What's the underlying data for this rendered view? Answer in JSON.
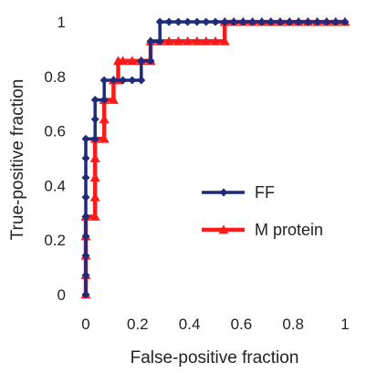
{
  "chart_data": {
    "type": "line",
    "title": "",
    "xlabel": "False-positive fraction",
    "ylabel": "True-positive fraction",
    "xlim": [
      0,
      1
    ],
    "ylim": [
      0,
      1
    ],
    "x_ticks": [
      "0",
      "0.2",
      "0.4",
      "0.6",
      "0.8",
      "1"
    ],
    "y_ticks": [
      "0",
      "0.2",
      "0.4",
      "0.6",
      "0.8",
      "1"
    ],
    "grid": false,
    "legend_position": "center-right",
    "series": [
      {
        "name": "FF",
        "color": "#1f2a7a",
        "marker": "diamond",
        "step": true,
        "points": [
          [
            0,
            0
          ],
          [
            0,
            0.071
          ],
          [
            0,
            0.143
          ],
          [
            0,
            0.214
          ],
          [
            0,
            0.286
          ],
          [
            0,
            0.357
          ],
          [
            0,
            0.429
          ],
          [
            0,
            0.5
          ],
          [
            0,
            0.571
          ],
          [
            0.036,
            0.571
          ],
          [
            0.036,
            0.643
          ],
          [
            0.036,
            0.714
          ],
          [
            0.071,
            0.714
          ],
          [
            0.071,
            0.786
          ],
          [
            0.107,
            0.786
          ],
          [
            0.143,
            0.786
          ],
          [
            0.179,
            0.786
          ],
          [
            0.214,
            0.786
          ],
          [
            0.214,
            0.857
          ],
          [
            0.25,
            0.857
          ],
          [
            0.25,
            0.929
          ],
          [
            0.286,
            0.929
          ],
          [
            0.286,
            1.0
          ],
          [
            0.321,
            1.0
          ],
          [
            0.357,
            1.0
          ],
          [
            0.393,
            1.0
          ],
          [
            0.429,
            1.0
          ],
          [
            0.464,
            1.0
          ],
          [
            0.5,
            1.0
          ],
          [
            0.536,
            1.0
          ],
          [
            0.571,
            1.0
          ],
          [
            0.607,
            1.0
          ],
          [
            0.643,
            1.0
          ],
          [
            0.679,
            1.0
          ],
          [
            0.714,
            1.0
          ],
          [
            0.75,
            1.0
          ],
          [
            0.786,
            1.0
          ],
          [
            0.821,
            1.0
          ],
          [
            0.857,
            1.0
          ],
          [
            0.893,
            1.0
          ],
          [
            0.929,
            1.0
          ],
          [
            0.964,
            1.0
          ],
          [
            1.0,
            1.0
          ]
        ]
      },
      {
        "name": "M protein",
        "color": "#ff1a1a",
        "marker": "triangle",
        "step": true,
        "points": [
          [
            0,
            0
          ],
          [
            0,
            0.071
          ],
          [
            0,
            0.143
          ],
          [
            0,
            0.214
          ],
          [
            0,
            0.286
          ],
          [
            0.036,
            0.286
          ],
          [
            0.036,
            0.357
          ],
          [
            0.036,
            0.429
          ],
          [
            0.036,
            0.5
          ],
          [
            0.036,
            0.571
          ],
          [
            0.071,
            0.571
          ],
          [
            0.071,
            0.643
          ],
          [
            0.071,
            0.714
          ],
          [
            0.107,
            0.714
          ],
          [
            0.107,
            0.786
          ],
          [
            0.125,
            0.786
          ],
          [
            0.125,
            0.857
          ],
          [
            0.143,
            0.857
          ],
          [
            0.179,
            0.857
          ],
          [
            0.214,
            0.857
          ],
          [
            0.25,
            0.857
          ],
          [
            0.25,
            0.929
          ],
          [
            0.286,
            0.929
          ],
          [
            0.321,
            0.929
          ],
          [
            0.357,
            0.929
          ],
          [
            0.393,
            0.929
          ],
          [
            0.429,
            0.929
          ],
          [
            0.464,
            0.929
          ],
          [
            0.5,
            0.929
          ],
          [
            0.536,
            0.929
          ],
          [
            0.536,
            1.0
          ],
          [
            0.571,
            1.0
          ],
          [
            0.607,
            1.0
          ],
          [
            0.643,
            1.0
          ],
          [
            0.679,
            1.0
          ],
          [
            0.714,
            1.0
          ],
          [
            0.75,
            1.0
          ],
          [
            0.786,
            1.0
          ],
          [
            0.821,
            1.0
          ],
          [
            0.857,
            1.0
          ],
          [
            0.893,
            1.0
          ],
          [
            0.929,
            1.0
          ],
          [
            0.964,
            1.0
          ],
          [
            1.0,
            1.0
          ]
        ]
      }
    ]
  }
}
